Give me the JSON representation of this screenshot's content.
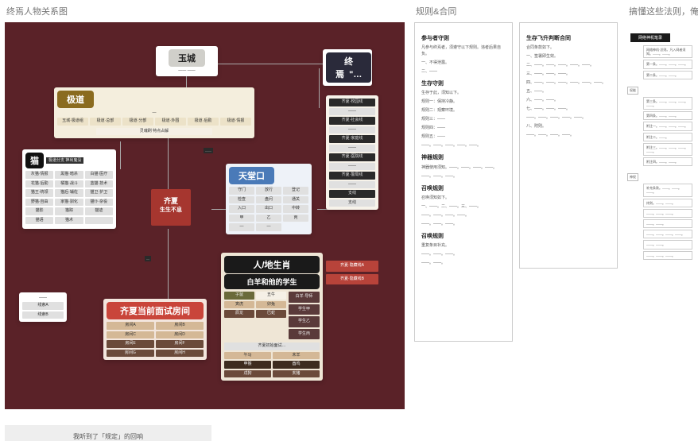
{
  "titles": {
    "col1": "终焉人物关系图",
    "col2": "规则&合同",
    "col3": "搞懂这些法则，俺",
    "bottom": "我听到了「规定」的回响"
  },
  "diagram": {
    "background": "#5a2228",
    "yucheng": {
      "label": "玉城",
      "bg": "#d0cfca",
      "text": "#222",
      "sub": "——  ——"
    },
    "zhongyan": {
      "label": "终焉  \"…",
      "bg": "#2a2a3a",
      "text": "#fff"
    },
    "jidao": {
      "label": "极道",
      "bg": "#8a6b1f",
      "text": "#fff",
      "sub": "—"
    },
    "jidao_row": [
      "玉城·极道组",
      "极道·总部",
      "极道·分部",
      "极道·外围",
      "极道·后勤",
      "极道·情报"
    ],
    "jidao_foot": "灵魂刷  特点占解",
    "mao": {
      "label": "猫",
      "sub": "极道分支  神出鬼没"
    },
    "mao_grid": [
      [
        "灰猫·情报",
        "黑猫·暗杀",
        "白猫·医疗"
      ],
      [
        "花猫·后勤",
        "橘猫·战斗",
        "蓝猫·技术"
      ],
      [
        "猫王·统领",
        "猫后·辅佐",
        "猫卫·护卫"
      ],
      [
        "野猫·自由",
        "家猫·驯化",
        "猫仆·杂役"
      ],
      [
        "猫影",
        "猫踪",
        "猫迹"
      ],
      [
        "猫语",
        "猫术",
        ""
      ]
    ],
    "mao_foot": "——  ——  ——",
    "qixia_center": {
      "line1": "齐夏",
      "line2": "生生不息",
      "bg": "#a6362f"
    },
    "tiantang": {
      "label": "天堂口",
      "bg": "#4a7ab8",
      "text": "#fff"
    },
    "tiantang_grid": [
      [
        "守门",
        "放行",
        "登记"
      ],
      [
        "检查",
        "盘问",
        "通关"
      ],
      [
        "入口",
        "出口",
        "中转"
      ],
      [
        "甲",
        "乙",
        "丙"
      ],
      [
        "—",
        "—",
        ""
      ]
    ],
    "right_list": [
      "齐夏·校园线",
      "——",
      "齐夏·社会线",
      "——",
      "齐夏·家庭线",
      "——",
      "齐夏·医院线",
      "——",
      "齐夏·警局线",
      "——",
      "支线",
      "支线"
    ],
    "right_bottom": [
      "齐夏·隐藏线A",
      "齐夏·隐藏线B"
    ],
    "shengxiao": {
      "line1": "人/地生肖",
      "line2": "白羊和他的学生",
      "bg": "#1a1a1a"
    },
    "shengxiao_grid": [
      [
        "子鼠",
        "丑牛"
      ],
      [
        "寅虎",
        "卯兔"
      ],
      [
        "辰龙",
        "巳蛇"
      ]
    ],
    "shengxiao_grid2": [
      [
        "午马",
        "未羊"
      ],
      [
        "申猴",
        "酉鸡"
      ],
      [
        "戌狗",
        "亥猪"
      ]
    ],
    "shengxiao_tall": [
      "白羊·导师",
      "学生甲",
      "学生乙",
      "学生丙"
    ],
    "qixia_room": {
      "label": "齐夏当前面试房间",
      "bg": "#c9453a",
      "text": "#fff"
    },
    "qixia_room_grid": [
      [
        "房间A",
        "房间B"
      ],
      [
        "房间C",
        "房间D"
      ],
      [
        "房间E",
        "房间F"
      ],
      [
        "房间G",
        "房间H"
      ]
    ],
    "qixia_init": {
      "label": "齐夏初始面试…",
      "bg": "#d0cfca"
    },
    "qixia_init_grid": [
      [
        "初始A",
        "初始B"
      ],
      [
        "初始C",
        "初始D"
      ],
      [
        "初始E",
        ""
      ]
    ],
    "left_small": {
      "top": "——",
      "rows": [
        "线索A",
        "线索B"
      ]
    }
  },
  "rules": {
    "left": {
      "sections": [
        {
          "h": "参与者守则",
          "p": [
            "凡参与终焉者，须遵守以下规则。违者后果自负。",
            "一、不得泄露。",
            "二、——"
          ]
        },
        {
          "h": "生存守则",
          "p": [
            "生存于此，须知以下。",
            "规则一：保持冷静。",
            "规则二：观察环境。",
            "规则三：——",
            "规则四：——",
            "规则五：——",
            "——。——。——。——。——。"
          ]
        },
        {
          "h": "神器规则",
          "p": [
            "神器使用须知。——。——。——。——。",
            "——。——。——。"
          ]
        },
        {
          "h": "召唤规则",
          "p": [
            "召唤须知如下。",
            "一、——。二、——。三、——。",
            "——。——。——。——。",
            "——。——。——。"
          ]
        },
        {
          "h": "召唤规则",
          "p": [
            "重复条目补充。",
            "——。——。——。",
            "——。——。"
          ]
        }
      ]
    },
    "right": {
      "sections": [
        {
          "h": "生存飞升判断合同",
          "p": [
            "合同条款如下。",
            "一、签署即生效。",
            "二、——。——。——。——。——。",
            "三、——。——。——。",
            "四、——。——。——。——。——。——。",
            "五、——。",
            "六、——。——。",
            "七、——。——。——。",
            "——。——。——。——。——。",
            "八、附则。",
            "——。——。——。——。"
          ]
        }
      ]
    }
  },
  "flow": {
    "header": "网络神机笔录",
    "tags": [
      "权能",
      "神权",
      "网络"
    ],
    "nodes": [
      "网络神机·总则。凡入网者须知。——。——。",
      "第一条。——。——。——。",
      "第二条。——。——。",
      "第三条。——。——。——。——。",
      "第四条。——。——。",
      "附注一。——。——。——。",
      "附注二。——。",
      "附注三。——。——。——。——。",
      "附注四。——。——。",
      "补充条款。——。——。——。",
      "终则。——。——。",
      "——。——。——。",
      "——。——。",
      "——。——。——。——。",
      "——。——。",
      "——。——。——。"
    ]
  }
}
